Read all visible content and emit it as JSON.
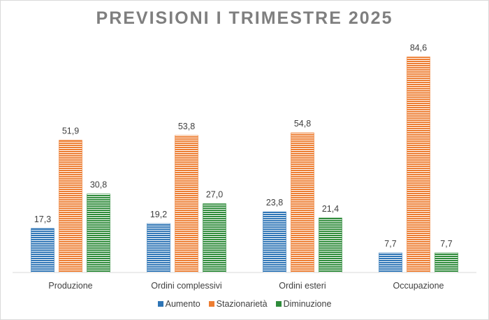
{
  "chart_data": {
    "type": "bar",
    "title": "PREVISIONI I TRIMESTRE 2025",
    "categories": [
      "Produzione",
      "Ordini complessivi",
      "Ordini esteri",
      "Occupazione"
    ],
    "series": [
      {
        "name": "Aumento",
        "color": "#2e75b6",
        "values": [
          17.3,
          19.2,
          23.8,
          7.7
        ],
        "labels": [
          "17,3",
          "19,2",
          "23,8",
          "7,7"
        ]
      },
      {
        "name": "Stazionarietà",
        "color": "#ed7d31",
        "values": [
          51.9,
          53.8,
          54.8,
          84.6
        ],
        "labels": [
          "51,9",
          "53,8",
          "54,8",
          "84,6"
        ]
      },
      {
        "name": "Diminuzione",
        "color": "#2e8b3a",
        "values": [
          30.8,
          27.0,
          21.4,
          7.7
        ],
        "labels": [
          "30,8",
          "27,0",
          "21,4",
          "7,7"
        ]
      }
    ],
    "ylim": [
      0,
      85
    ],
    "grid": false,
    "legend_position": "bottom",
    "bar_pattern": "horizontal-stripes"
  }
}
